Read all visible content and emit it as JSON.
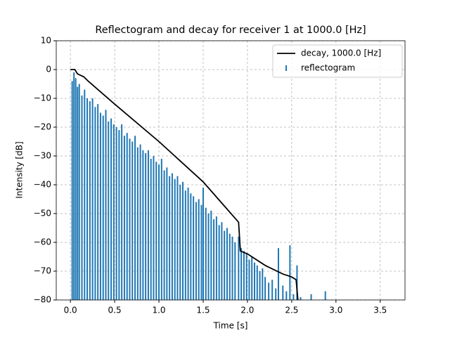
{
  "chart_data": {
    "type": "combo",
    "title": "Reflectogram and decay for receiver 1 at 1000.0 [Hz]",
    "xlabel": "Time [s]",
    "ylabel": "Intensity [dB]",
    "xlim": [
      -0.16,
      3.78
    ],
    "ylim": [
      -80,
      10
    ],
    "xticks": [
      {
        "value": 0,
        "label": "0.0"
      },
      0.5,
      {
        "value": 1,
        "label": "1.0"
      },
      1.5,
      {
        "value": 2,
        "label": "2.0"
      },
      2.5,
      {
        "value": 3,
        "label": "3.0"
      },
      3.5
    ],
    "yticks": [
      {
        "value": -80,
        "label": "−80"
      },
      {
        "value": -70,
        "label": "−70"
      },
      {
        "value": -60,
        "label": "−60"
      },
      {
        "value": -50,
        "label": "−50"
      },
      {
        "value": -40,
        "label": "−40"
      },
      {
        "value": -30,
        "label": "−30"
      },
      {
        "value": -20,
        "label": "−20"
      },
      {
        "value": -10,
        "label": "−10"
      },
      0,
      10
    ],
    "grid": true,
    "legend": "upper right",
    "series": [
      {
        "name": "decay, 1000.0 [Hz]",
        "type": "line",
        "color": "#000000",
        "x": [
          0,
          0.05,
          0.08,
          0.15,
          0.2,
          0.5,
          1.0,
          1.5,
          1.7,
          1.9,
          1.92,
          2.0,
          2.2,
          2.4,
          2.5,
          2.55,
          2.57
        ],
        "values": [
          0,
          0,
          -1.5,
          -2.5,
          -4,
          -12,
          -25,
          -39,
          -46,
          -53,
          -63,
          -64,
          -68,
          -71,
          -72,
          -73,
          -80
        ]
      },
      {
        "name": "reflectogram",
        "type": "bar",
        "color": "#1f77b4",
        "x": [
          0.02,
          0.04,
          0.06,
          0.08,
          0.1,
          0.13,
          0.16,
          0.19,
          0.22,
          0.25,
          0.28,
          0.31,
          0.34,
          0.37,
          0.4,
          0.43,
          0.46,
          0.49,
          0.52,
          0.55,
          0.58,
          0.61,
          0.64,
          0.67,
          0.7,
          0.73,
          0.76,
          0.79,
          0.82,
          0.85,
          0.88,
          0.91,
          0.94,
          0.97,
          1.0,
          1.03,
          1.06,
          1.09,
          1.12,
          1.15,
          1.18,
          1.21,
          1.24,
          1.27,
          1.3,
          1.33,
          1.36,
          1.39,
          1.42,
          1.45,
          1.48,
          1.5,
          1.53,
          1.56,
          1.59,
          1.62,
          1.65,
          1.68,
          1.71,
          1.74,
          1.77,
          1.8,
          1.83,
          1.86,
          1.9,
          1.93,
          1.96,
          1.99,
          2.02,
          2.05,
          2.08,
          2.11,
          2.14,
          2.17,
          2.2,
          2.24,
          2.28,
          2.32,
          2.35,
          2.4,
          2.44,
          2.48,
          2.52,
          2.56,
          2.6,
          2.72,
          2.88
        ],
        "values": [
          -4,
          -1,
          -3,
          -6,
          -5,
          -9,
          -7,
          -10,
          -11,
          -10,
          -13,
          -12,
          -15,
          -16,
          -14,
          -18,
          -17,
          -19,
          -20,
          -21,
          -19,
          -23,
          -22,
          -24,
          -25,
          -23,
          -27,
          -26,
          -28,
          -29,
          -28,
          -31,
          -30,
          -32,
          -33,
          -31,
          -35,
          -34,
          -37,
          -36,
          -38,
          -37,
          -40,
          -39,
          -42,
          -41,
          -43,
          -44,
          -46,
          -45,
          -47,
          -41,
          -48,
          -50,
          -49,
          -52,
          -51,
          -54,
          -53,
          -56,
          -55,
          -57,
          -58,
          -60,
          -58,
          -62,
          -63,
          -64,
          -66,
          -65,
          -67,
          -68,
          -70,
          -69,
          -72,
          -74,
          -73,
          -76,
          -62,
          -75,
          -77,
          -61,
          -78,
          -68,
          -79,
          -78,
          -77
        ]
      }
    ]
  }
}
